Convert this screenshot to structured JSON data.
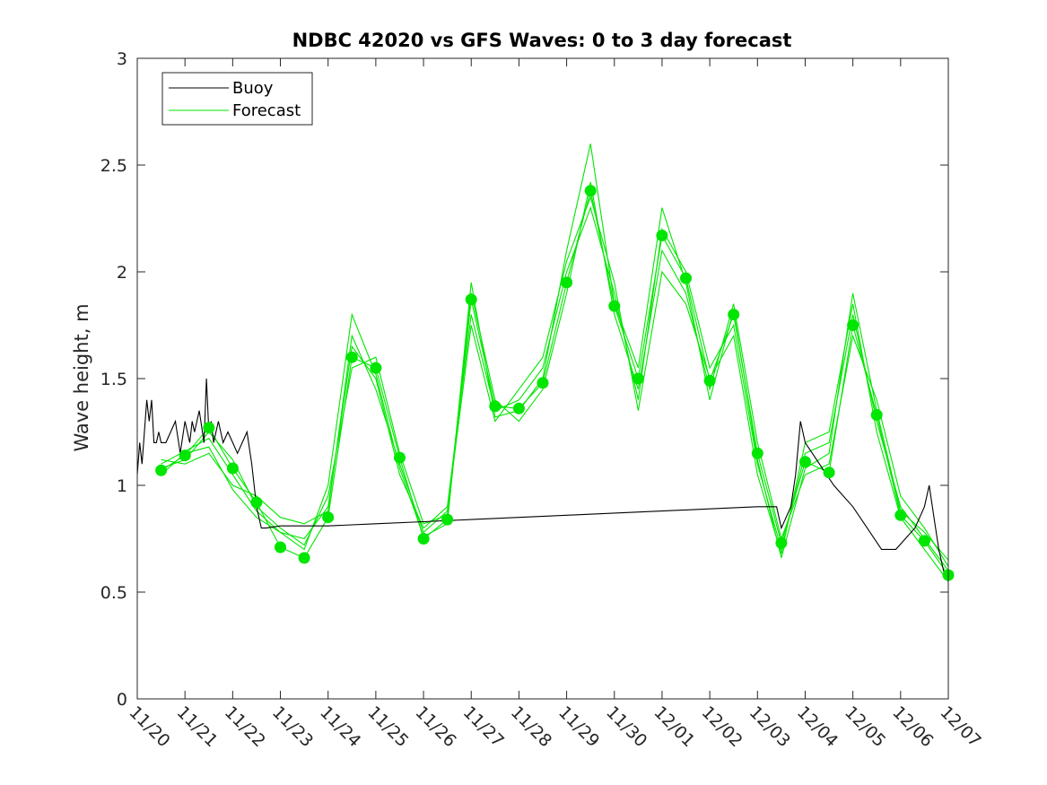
{
  "chart_data": {
    "type": "line",
    "title": "NDBC 42020 vs GFS Waves: 0 to 3 day forecast",
    "xlabel": "",
    "ylabel": "Wave height, m",
    "ylim": [
      0,
      3
    ],
    "xlim": [
      0,
      17
    ],
    "x_tick_labels": [
      "11/20",
      "11/21",
      "11/22",
      "11/23",
      "11/24",
      "11/25",
      "11/26",
      "11/27",
      "11/28",
      "11/29",
      "11/30",
      "12/01",
      "12/02",
      "12/03",
      "12/04",
      "12/05",
      "12/06",
      "12/07"
    ],
    "y_ticks": [
      0,
      0.5,
      1,
      1.5,
      2,
      2.5,
      3
    ],
    "y_tick_labels": [
      "0",
      "0.5",
      "1",
      "1.5",
      "2",
      "2.5",
      "3"
    ],
    "legend": {
      "location": "top-left",
      "entries": [
        {
          "label": "Buoy",
          "color": "#000000"
        },
        {
          "label": "Forecast",
          "color": "#00e600"
        }
      ]
    },
    "colors": {
      "buoy": "#000000",
      "forecast": "#00e600",
      "marker": "#00e600"
    },
    "buoy": {
      "name": "Buoy",
      "x": [
        0,
        0.05,
        0.1,
        0.2,
        0.25,
        0.3,
        0.35,
        0.4,
        0.45,
        0.5,
        0.6,
        0.7,
        0.8,
        0.9,
        1.0,
        1.1,
        1.15,
        1.2,
        1.3,
        1.4,
        1.45,
        1.5,
        1.55,
        1.6,
        1.7,
        1.8,
        1.9,
        2.0,
        2.1,
        2.2,
        2.3,
        2.4,
        2.5,
        2.6,
        2.7,
        3.0,
        4.0,
        5.0,
        6.0,
        7.0,
        8.0,
        9.0,
        10.0,
        11.0,
        12.0,
        13.0,
        13.4,
        13.5,
        13.6,
        13.7,
        13.8,
        13.9,
        14.0,
        14.3,
        14.6,
        15.0,
        15.3,
        15.6,
        15.9,
        16.1,
        16.3,
        16.5,
        16.6,
        16.7,
        16.8,
        16.9,
        17.0
      ],
      "values": [
        1.05,
        1.2,
        1.1,
        1.4,
        1.3,
        1.4,
        1.2,
        1.2,
        1.25,
        1.2,
        1.2,
        1.25,
        1.3,
        1.15,
        1.3,
        1.2,
        1.3,
        1.25,
        1.35,
        1.2,
        1.5,
        1.25,
        1.3,
        1.2,
        1.3,
        1.2,
        1.25,
        1.2,
        1.15,
        1.2,
        1.25,
        1.1,
        0.9,
        0.8,
        0.8,
        0.81,
        0.81,
        0.82,
        0.83,
        0.84,
        0.85,
        0.86,
        0.87,
        0.88,
        0.89,
        0.9,
        0.9,
        0.8,
        0.85,
        0.9,
        1.05,
        1.3,
        1.2,
        1.1,
        1.0,
        0.9,
        0.8,
        0.7,
        0.7,
        0.75,
        0.8,
        0.9,
        1.0,
        0.85,
        0.7,
        0.6,
        0.55
      ]
    },
    "forecast_series": [
      {
        "name": "Forecast",
        "x": [
          0.5,
          1.0,
          1.5,
          2.0,
          2.5,
          3.0,
          3.5,
          4.0,
          4.5,
          5.0,
          5.5,
          6.0,
          6.5,
          7.0,
          7.5,
          8.0,
          8.5,
          9.0,
          9.5,
          10.0,
          10.5,
          11.0,
          11.5,
          12.0,
          12.5,
          13.0,
          13.5,
          14.0,
          14.5,
          15.0,
          15.5,
          16.0,
          16.5,
          17.0
        ],
        "values": [
          1.07,
          1.14,
          1.27,
          1.08,
          0.92,
          0.71,
          0.66,
          0.85,
          1.6,
          1.55,
          1.13,
          0.75,
          0.84,
          1.87,
          1.37,
          1.36,
          1.48,
          1.95,
          2.38,
          1.84,
          1.5,
          2.17,
          1.97,
          1.49,
          1.8,
          1.15,
          0.73,
          1.11,
          1.06,
          1.75,
          1.33,
          0.86,
          0.74,
          0.58
        ]
      },
      {
        "name": "Forecast",
        "x": [
          0.5,
          1.0,
          1.5,
          2.0,
          2.5,
          3.0,
          3.5,
          4.0,
          4.5,
          5.0,
          5.5,
          6.0,
          6.5,
          7.0,
          7.5,
          8.0,
          8.5,
          9.0,
          9.5,
          10.0,
          10.5,
          11.0,
          11.5,
          12.0,
          12.5,
          13.0,
          13.5,
          14.0,
          14.5,
          15.0,
          15.5,
          16.0,
          16.5,
          17.0
        ],
        "values": [
          1.1,
          1.16,
          1.22,
          1.05,
          0.88,
          0.78,
          0.75,
          0.9,
          1.65,
          1.5,
          1.05,
          0.8,
          0.9,
          1.8,
          1.35,
          1.4,
          1.55,
          2.0,
          2.3,
          1.9,
          1.4,
          2.2,
          2.0,
          1.55,
          1.75,
          1.1,
          0.7,
          1.15,
          1.2,
          1.8,
          1.3,
          0.9,
          0.75,
          0.6
        ]
      },
      {
        "name": "Forecast",
        "x": [
          0.5,
          1.0,
          1.5,
          2.0,
          2.5,
          3.0,
          3.5,
          4.0,
          4.5,
          5.0,
          5.5,
          6.0,
          6.5,
          7.0,
          7.5,
          8.0,
          8.5,
          9.0,
          9.5,
          10.0,
          10.5,
          11.0,
          11.5,
          12.0,
          12.5,
          13.0,
          13.5,
          14.0,
          14.5,
          15.0,
          15.5,
          16.0,
          16.5,
          17.0
        ],
        "values": [
          1.08,
          1.12,
          1.25,
          1.12,
          0.9,
          0.8,
          0.72,
          0.95,
          1.55,
          1.6,
          1.15,
          0.82,
          0.86,
          1.9,
          1.4,
          1.3,
          1.45,
          1.9,
          2.42,
          1.8,
          1.45,
          2.1,
          1.9,
          1.45,
          1.85,
          1.2,
          0.75,
          1.05,
          1.1,
          1.7,
          1.4,
          0.95,
          0.8,
          0.62
        ]
      },
      {
        "name": "Forecast",
        "x": [
          0.5,
          1.0,
          1.5,
          2.0,
          2.5,
          3.0,
          3.5,
          4.0,
          4.5,
          5.0,
          5.5,
          6.0,
          6.5,
          7.0,
          7.5,
          8.0,
          8.5,
          9.0,
          9.5,
          10.0,
          10.5,
          11.0,
          11.5,
          12.0,
          12.5,
          13.0,
          13.5,
          14.0,
          14.5,
          15.0,
          15.5,
          16.0,
          16.5,
          17.0
        ],
        "values": [
          1.12,
          1.1,
          1.15,
          1.0,
          0.95,
          0.85,
          0.82,
          0.88,
          1.7,
          1.45,
          1.1,
          0.78,
          0.88,
          1.75,
          1.3,
          1.45,
          1.6,
          2.05,
          2.35,
          1.95,
          1.35,
          2.0,
          1.85,
          1.5,
          1.7,
          1.05,
          0.68,
          1.2,
          1.25,
          1.85,
          1.25,
          0.85,
          0.7,
          0.55
        ]
      },
      {
        "name": "Forecast",
        "x": [
          0.5,
          1.0,
          1.5,
          2.0,
          2.5,
          3.0,
          3.5,
          4.0,
          4.5,
          5.0,
          5.5,
          6.0,
          6.5,
          7.0,
          7.5,
          8.0,
          8.5,
          9.0,
          9.5,
          10.0,
          10.5,
          11.0,
          11.5,
          12.0,
          12.5,
          13.0,
          13.5,
          14.0,
          14.5,
          15.0,
          15.5,
          16.0,
          16.5,
          17.0
        ],
        "values": [
          1.05,
          1.15,
          1.18,
          0.98,
          0.85,
          0.78,
          0.7,
          1.0,
          1.8,
          1.52,
          1.08,
          0.76,
          0.82,
          1.95,
          1.32,
          1.35,
          1.5,
          2.1,
          2.6,
          1.85,
          1.55,
          2.3,
          1.95,
          1.4,
          1.82,
          1.12,
          0.66,
          1.08,
          1.15,
          1.9,
          1.35,
          0.88,
          0.78,
          0.65
        ]
      }
    ],
    "marker_points": {
      "x": [
        0.5,
        1.0,
        1.5,
        2.0,
        2.5,
        3.0,
        3.5,
        4.0,
        4.5,
        5.0,
        5.5,
        6.0,
        6.5,
        7.0,
        7.5,
        8.0,
        8.5,
        9.0,
        9.5,
        10.0,
        10.5,
        11.0,
        11.5,
        12.0,
        12.5,
        13.0,
        13.5,
        14.0,
        14.5,
        15.0,
        15.5,
        16.0,
        16.5,
        17.0
      ],
      "values": [
        1.07,
        1.14,
        1.27,
        1.08,
        0.92,
        0.71,
        0.66,
        0.85,
        1.6,
        1.55,
        1.13,
        0.75,
        0.84,
        1.87,
        1.37,
        1.36,
        1.48,
        1.95,
        2.38,
        1.84,
        1.5,
        2.17,
        1.97,
        1.49,
        1.8,
        1.15,
        0.73,
        1.11,
        1.06,
        1.75,
        1.33,
        0.86,
        0.74,
        0.58
      ]
    }
  }
}
